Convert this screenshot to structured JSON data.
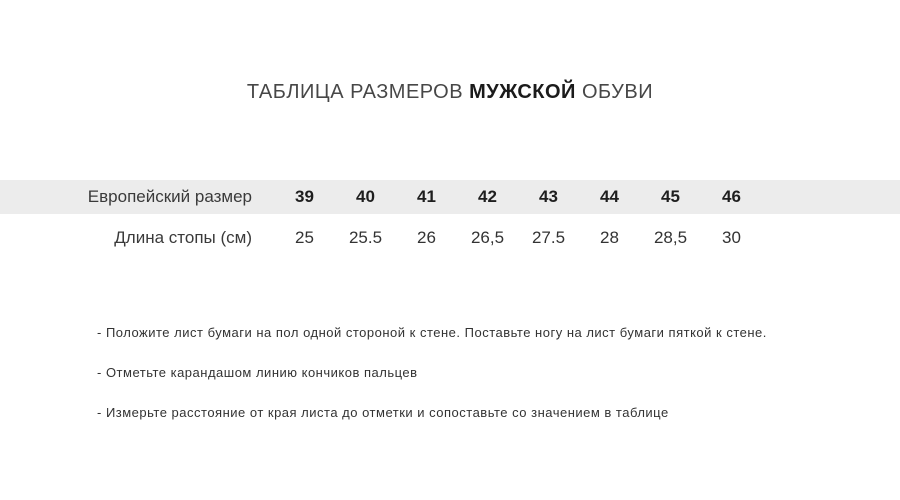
{
  "title": {
    "prefix": "ТАБЛИЦА РАЗМЕРОВ ",
    "bold": "МУЖСКОЙ",
    "suffix": " ОБУВИ"
  },
  "chart_data": {
    "type": "table",
    "title": "ТАБЛИЦА РАЗМЕРОВ МУЖСКОЙ ОБУВИ",
    "rows": [
      {
        "label": "Европейский размер",
        "values": [
          "39",
          "40",
          "41",
          "42",
          "43",
          "44",
          "45",
          "46"
        ]
      },
      {
        "label": "Длина стопы (см)",
        "values": [
          "25",
          "25.5",
          "26",
          "26,5",
          "27.5",
          "28",
          "28,5",
          "30"
        ]
      }
    ]
  },
  "table": {
    "rows": [
      {
        "label": "Европейский размер",
        "values": {
          "0": "39",
          "1": "40",
          "2": "41",
          "3": "42",
          "4": "43",
          "5": "44",
          "6": "45",
          "7": "46"
        }
      },
      {
        "label": "Длина стопы (см)",
        "values": {
          "0": "25",
          "1": "25.5",
          "2": "26",
          "3": "26,5",
          "4": "27.5",
          "5": "28",
          "6": "28,5",
          "7": "30"
        }
      }
    ]
  },
  "instructions": [
    "- Положите лист бумаги на пол одной стороной к стене. Поставьте ногу на лист бумаги пяткой к стене.",
    "- Отметьте карандашом линию кончиков пальцев",
    "- Измерьте расстояние от края листа до отметки и сопоставьте со значением в таблице"
  ],
  "colors": {
    "row_highlight": "#ececec",
    "title_text": "#474747",
    "title_bold": "#1b1b1b",
    "body_text": "#333333",
    "background": "#ffffff"
  }
}
